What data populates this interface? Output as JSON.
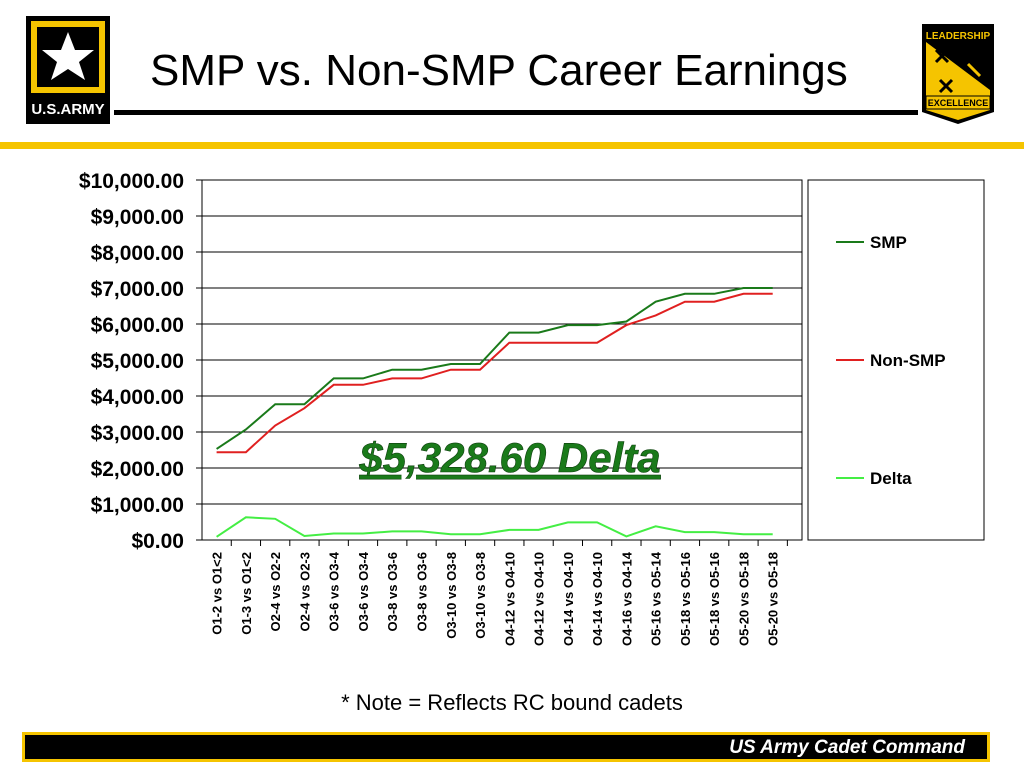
{
  "header": {
    "title": "SMP vs. Non-SMP Career Earnings",
    "logo_text": "U.S.ARMY",
    "badge_top_text": "LEADERSHIP",
    "badge_bottom_text": "EXCELLENCE"
  },
  "note": "* Note = Reflects RC bound cadets",
  "footer": {
    "text": "US Army Cadet Command"
  },
  "colors": {
    "gold": "#f5c400",
    "smp": "#1a7a1a",
    "non_smp": "#e02020",
    "delta": "#44ee44",
    "annotation": "#1a7a1a"
  },
  "chart_data": {
    "type": "line",
    "categories": [
      "O1-2 vs O1<2",
      "O1-3 vs O1<2",
      "O2-4 vs O2-2",
      "O2-4 vs O2-3",
      "O3-6 vs O3-4",
      "O3-6 vs O3-4",
      "O3-8 vs O3-6",
      "O3-8 vs O3-6",
      "O3-10 vs O3-8",
      "O3-10 vs O3-8",
      "O4-12 vs O4-10",
      "O4-12 vs O4-10",
      "O4-14 vs O4-10",
      "O4-14 vs O4-10",
      "O4-16 vs O4-14",
      "O5-16 vs O5-14",
      "O5-18 vs O5-16",
      "O5-18 vs O5-16",
      "O5-20 vs O5-18",
      "O5-20 vs O5-18"
    ],
    "series": [
      {
        "name": "SMP",
        "values": [
          2530,
          3070,
          3770,
          3770,
          4490,
          4490,
          4730,
          4730,
          4890,
          4890,
          5760,
          5760,
          5970,
          5970,
          6070,
          6620,
          6840,
          6840,
          7000,
          7000
        ]
      },
      {
        "name": "Non-SMP",
        "values": [
          2440,
          2440,
          3180,
          3660,
          4310,
          4310,
          4490,
          4490,
          4730,
          4730,
          5480,
          5480,
          5480,
          5480,
          5970,
          6240,
          6620,
          6620,
          6840,
          6840
        ]
      },
      {
        "name": "Delta",
        "values": [
          90,
          630,
          590,
          110,
          180,
          180,
          240,
          240,
          160,
          160,
          280,
          280,
          490,
          490,
          100,
          380,
          220,
          220,
          160,
          160
        ]
      }
    ],
    "ylim": [
      0,
      10000
    ],
    "yticks": [
      "$0.00",
      "$1,000.00",
      "$2,000.00",
      "$3,000.00",
      "$4,000.00",
      "$5,000.00",
      "$6,000.00",
      "$7,000.00",
      "$8,000.00",
      "$9,000.00",
      "$10,000.00"
    ],
    "grid": true,
    "legend": "right",
    "annotation": "$5,328.60 Delta"
  }
}
